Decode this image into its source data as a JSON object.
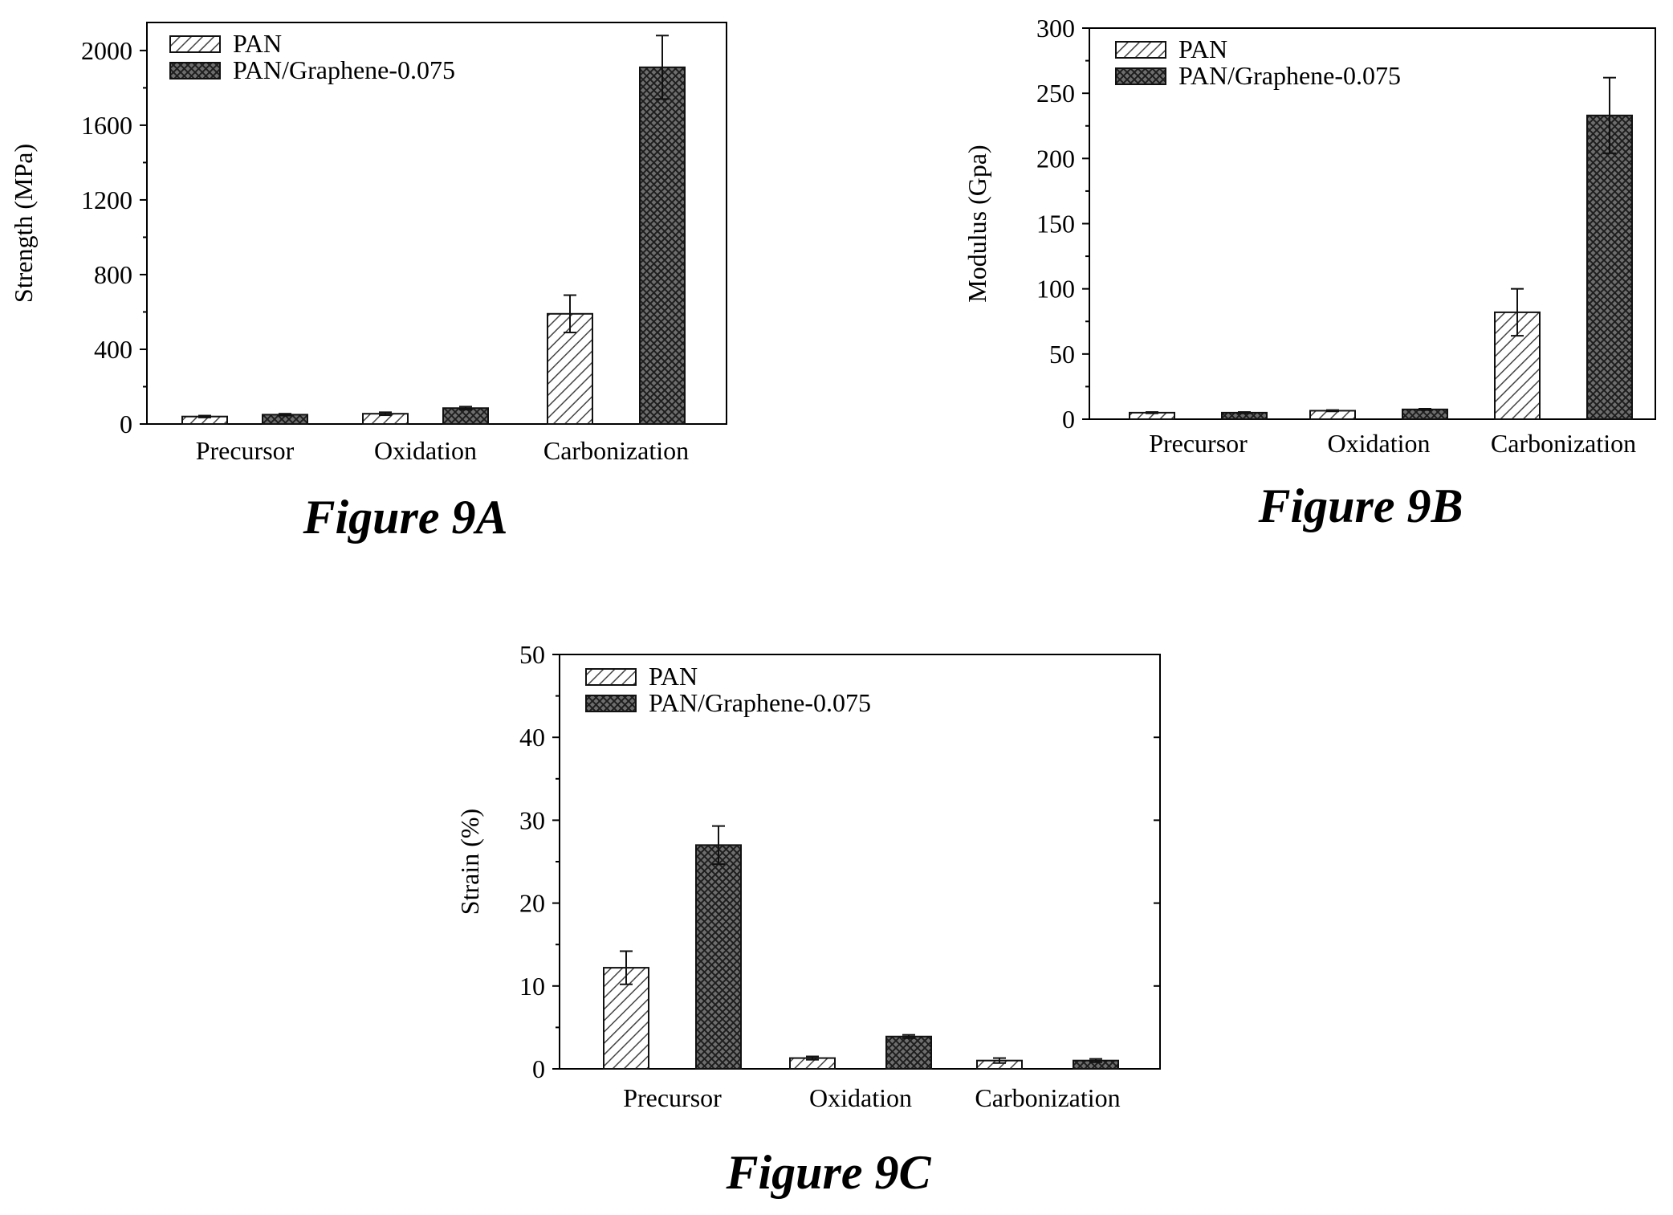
{
  "chart_data": [
    {
      "type": "bar",
      "figure_label": "Figure 9A",
      "categories": [
        "Precursor",
        "Oxidation",
        "Carbonization"
      ],
      "series": [
        {
          "name": "PAN",
          "values": [
            40,
            55,
            590
          ],
          "errors": [
            5,
            8,
            100
          ]
        },
        {
          "name": "PAN/Graphene-0.075",
          "values": [
            50,
            85,
            1910
          ],
          "errors": [
            5,
            8,
            170
          ]
        }
      ],
      "xlabel": "",
      "ylabel": "Strength (MPa)",
      "ylim": [
        0,
        2150
      ],
      "yticks": [
        0,
        400,
        800,
        1200,
        1600,
        2000
      ],
      "ytick_labels": [
        "0",
        "400",
        "800",
        "1200",
        "1600",
        "2000"
      ],
      "grid": false,
      "legend": "top-left"
    },
    {
      "type": "bar",
      "figure_label": "Figure 9B",
      "categories": [
        "Precursor",
        "Oxidation",
        "Carbonization"
      ],
      "series": [
        {
          "name": "PAN",
          "values": [
            5,
            6.5,
            82
          ],
          "errors": [
            0.5,
            0.5,
            18
          ]
        },
        {
          "name": "PAN/Graphene-0.075",
          "values": [
            5,
            7.5,
            233
          ],
          "errors": [
            0.5,
            0.5,
            29
          ]
        }
      ],
      "xlabel": "",
      "ylabel": "Modulus (Gpa)",
      "ylim": [
        0,
        300
      ],
      "yticks": [
        0,
        50,
        100,
        150,
        200,
        250,
        300
      ],
      "ytick_labels": [
        "0",
        "50",
        "100",
        "150",
        "200",
        "250",
        "300"
      ],
      "grid": false,
      "legend": "top-left"
    },
    {
      "type": "bar",
      "figure_label": "Figure 9C",
      "categories": [
        "Precursor",
        "Oxidation",
        "Carbonization"
      ],
      "series": [
        {
          "name": "PAN",
          "values": [
            12.2,
            1.3,
            1.0
          ],
          "errors": [
            2.0,
            0.2,
            0.3
          ]
        },
        {
          "name": "PAN/Graphene-0.075",
          "values": [
            27,
            3.9,
            1.0
          ],
          "errors": [
            2.3,
            0.2,
            0.2
          ]
        }
      ],
      "xlabel": "",
      "ylabel": "Strain (%)",
      "ylim": [
        0,
        50
      ],
      "yticks": [
        0,
        10,
        20,
        30,
        40,
        50
      ],
      "ytick_labels": [
        "0",
        "10",
        "20",
        "30",
        "40",
        "50"
      ],
      "grid": false,
      "legend": "top-left"
    }
  ],
  "colors": {
    "pan_fill": "#ffffff",
    "pan_hatch": "#444444",
    "graphene_fill": "#6e6e6e",
    "graphene_hatch": "#1e1e1e",
    "axis": "#000000"
  }
}
